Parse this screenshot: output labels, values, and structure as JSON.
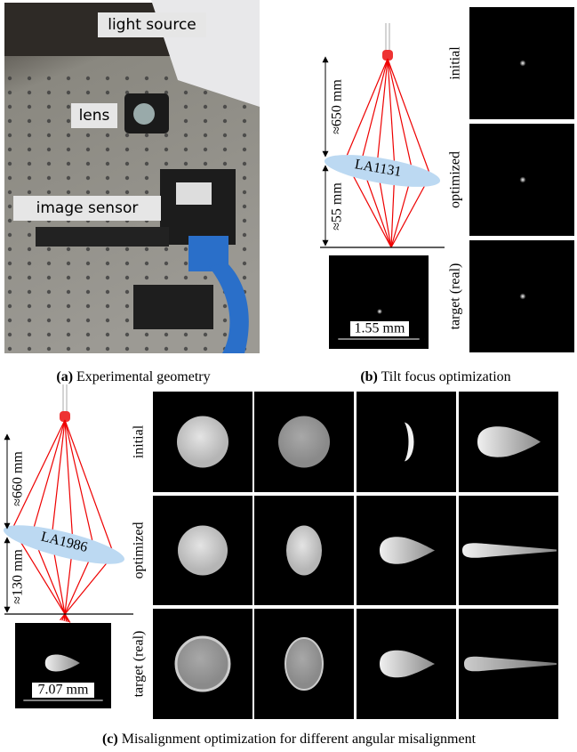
{
  "panel_a": {
    "labels": [
      "light source",
      "lens",
      "image sensor"
    ],
    "caption": {
      "tag": "(a)",
      "text": "Experimental geometry"
    }
  },
  "panel_b": {
    "distances": [
      "≈650 mm",
      "≈55 mm"
    ],
    "lens": "LA1131",
    "scale": "1.55 mm",
    "rows": [
      "initial",
      "optimized",
      "target (real)"
    ],
    "caption": {
      "tag": "(b)",
      "text": "Tilt focus optimization"
    }
  },
  "panel_c": {
    "distances": [
      "≈660 mm",
      "≈130 mm"
    ],
    "lens": "LA1986",
    "scale": "7.07 mm",
    "rows": [
      "initial",
      "optimized",
      "target (real)"
    ],
    "caption": {
      "tag": "(c)",
      "text": "Misalignment optimization for different angular misalignment"
    }
  }
}
